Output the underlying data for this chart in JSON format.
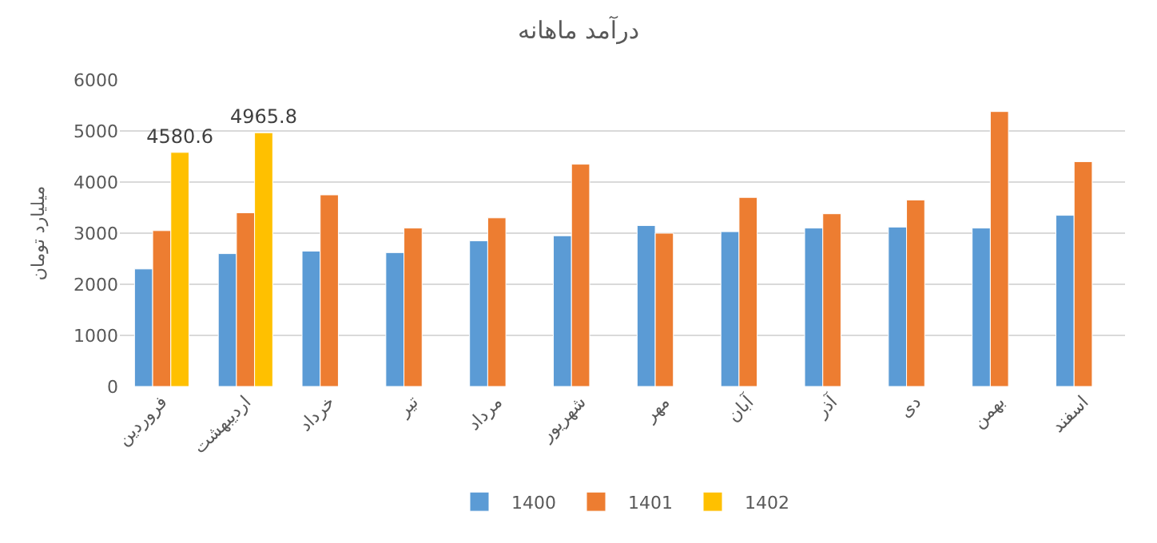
{
  "chart_data": {
    "type": "bar",
    "title": "درآمد ماهانه",
    "ylabel": "میلیارد تومان",
    "categories": [
      "فروردین",
      "اردیبهشت",
      "خرداد",
      "تیر",
      "مرداد",
      "شهریور",
      "مهر",
      "آبان",
      "آذر",
      "دی",
      "بهمن",
      "اسفند"
    ],
    "series": [
      {
        "name": "1400",
        "color": "#5b9bd5",
        "values": [
          2300,
          2600,
          2650,
          2620,
          2850,
          2950,
          3150,
          3030,
          3100,
          3120,
          3100,
          3350
        ]
      },
      {
        "name": "1401",
        "color": "#ed7d31",
        "values": [
          3050,
          3400,
          3750,
          3100,
          3300,
          4350,
          3000,
          3700,
          3380,
          3650,
          5380,
          4400
        ]
      },
      {
        "name": "1402",
        "color": "#ffc000",
        "values": [
          4580.6,
          4965.8,
          null,
          null,
          null,
          null,
          null,
          null,
          null,
          null,
          null,
          null
        ],
        "value_labels": [
          "4580.6",
          "4965.8",
          null,
          null,
          null,
          null,
          null,
          null,
          null,
          null,
          null,
          null
        ]
      }
    ],
    "ylim": [
      0,
      6000
    ],
    "yticks": [
      0,
      1000,
      2000,
      3000,
      4000,
      5000,
      6000
    ],
    "grid": "y",
    "legend": "bottom"
  }
}
